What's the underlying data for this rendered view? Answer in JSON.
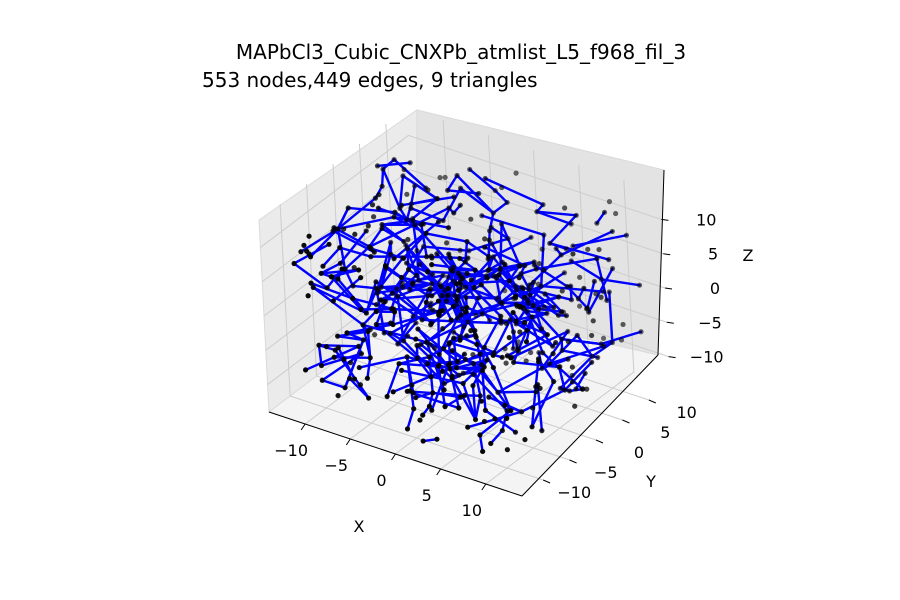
{
  "chart_data": {
    "type": "scatter",
    "subtype": "3d-network-graph",
    "title": "MAPbCl3_Cubic_CNXPb_atmlist_L5_f968_fil_3",
    "subtitle": "553 nodes,449 edges, 9 triangles",
    "xlabel": "X",
    "ylabel": "Y",
    "zlabel": "Z",
    "xlim": [
      -14,
      14
    ],
    "ylim": [
      -14,
      14
    ],
    "zlim": [
      -14,
      14
    ],
    "x_ticks": [
      "−10",
      "−5",
      "0",
      "5",
      "10"
    ],
    "y_ticks": [
      "−10",
      "−5",
      "0",
      "5",
      "10"
    ],
    "z_ticks": [
      "−10",
      "−5",
      "0",
      "5",
      "10"
    ],
    "grid": true,
    "node_count": 553,
    "edge_count": 449,
    "triangle_count": 9,
    "node_color": "#000000",
    "edge_color": "#0000ff",
    "pane_color": "#f2f2f2",
    "grid_color": "#cccccc"
  }
}
